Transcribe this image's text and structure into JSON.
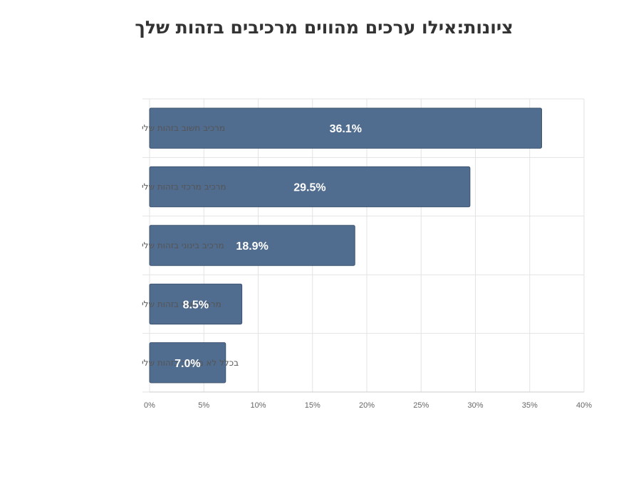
{
  "chart_data": {
    "type": "bar",
    "orientation": "horizontal",
    "title": "ציונות:אילו ערכים מהווים מרכיבים בזהות שלך",
    "categories": [
      "מרכיב חשוב בזהות שלי",
      "מרכיב מרכזי בזהות שלי",
      "מרכיב בינוני בזהות שלי",
      "מרכיב שולי בזהות שלי",
      "בכלל לא מרכיב בזהות שלי"
    ],
    "values": [
      36.1,
      29.5,
      18.9,
      8.5,
      7.0
    ],
    "data_labels": [
      "36.1%",
      "29.5%",
      "18.9%",
      "8.5%",
      "7.0%"
    ],
    "xlim": [
      0,
      40
    ],
    "x_ticks": [
      "0%",
      "5%",
      "10%",
      "15%",
      "20%",
      "25%",
      "30%",
      "35%",
      "40%"
    ],
    "x_tick_values": [
      0,
      5,
      10,
      15,
      20,
      25,
      30,
      35,
      40
    ],
    "grid": true,
    "legend": "none",
    "colors": {
      "bar": "#506c8f",
      "bar_border": "#3c5370",
      "grid": "#e3e3e3",
      "axis": "#cccccc"
    }
  }
}
